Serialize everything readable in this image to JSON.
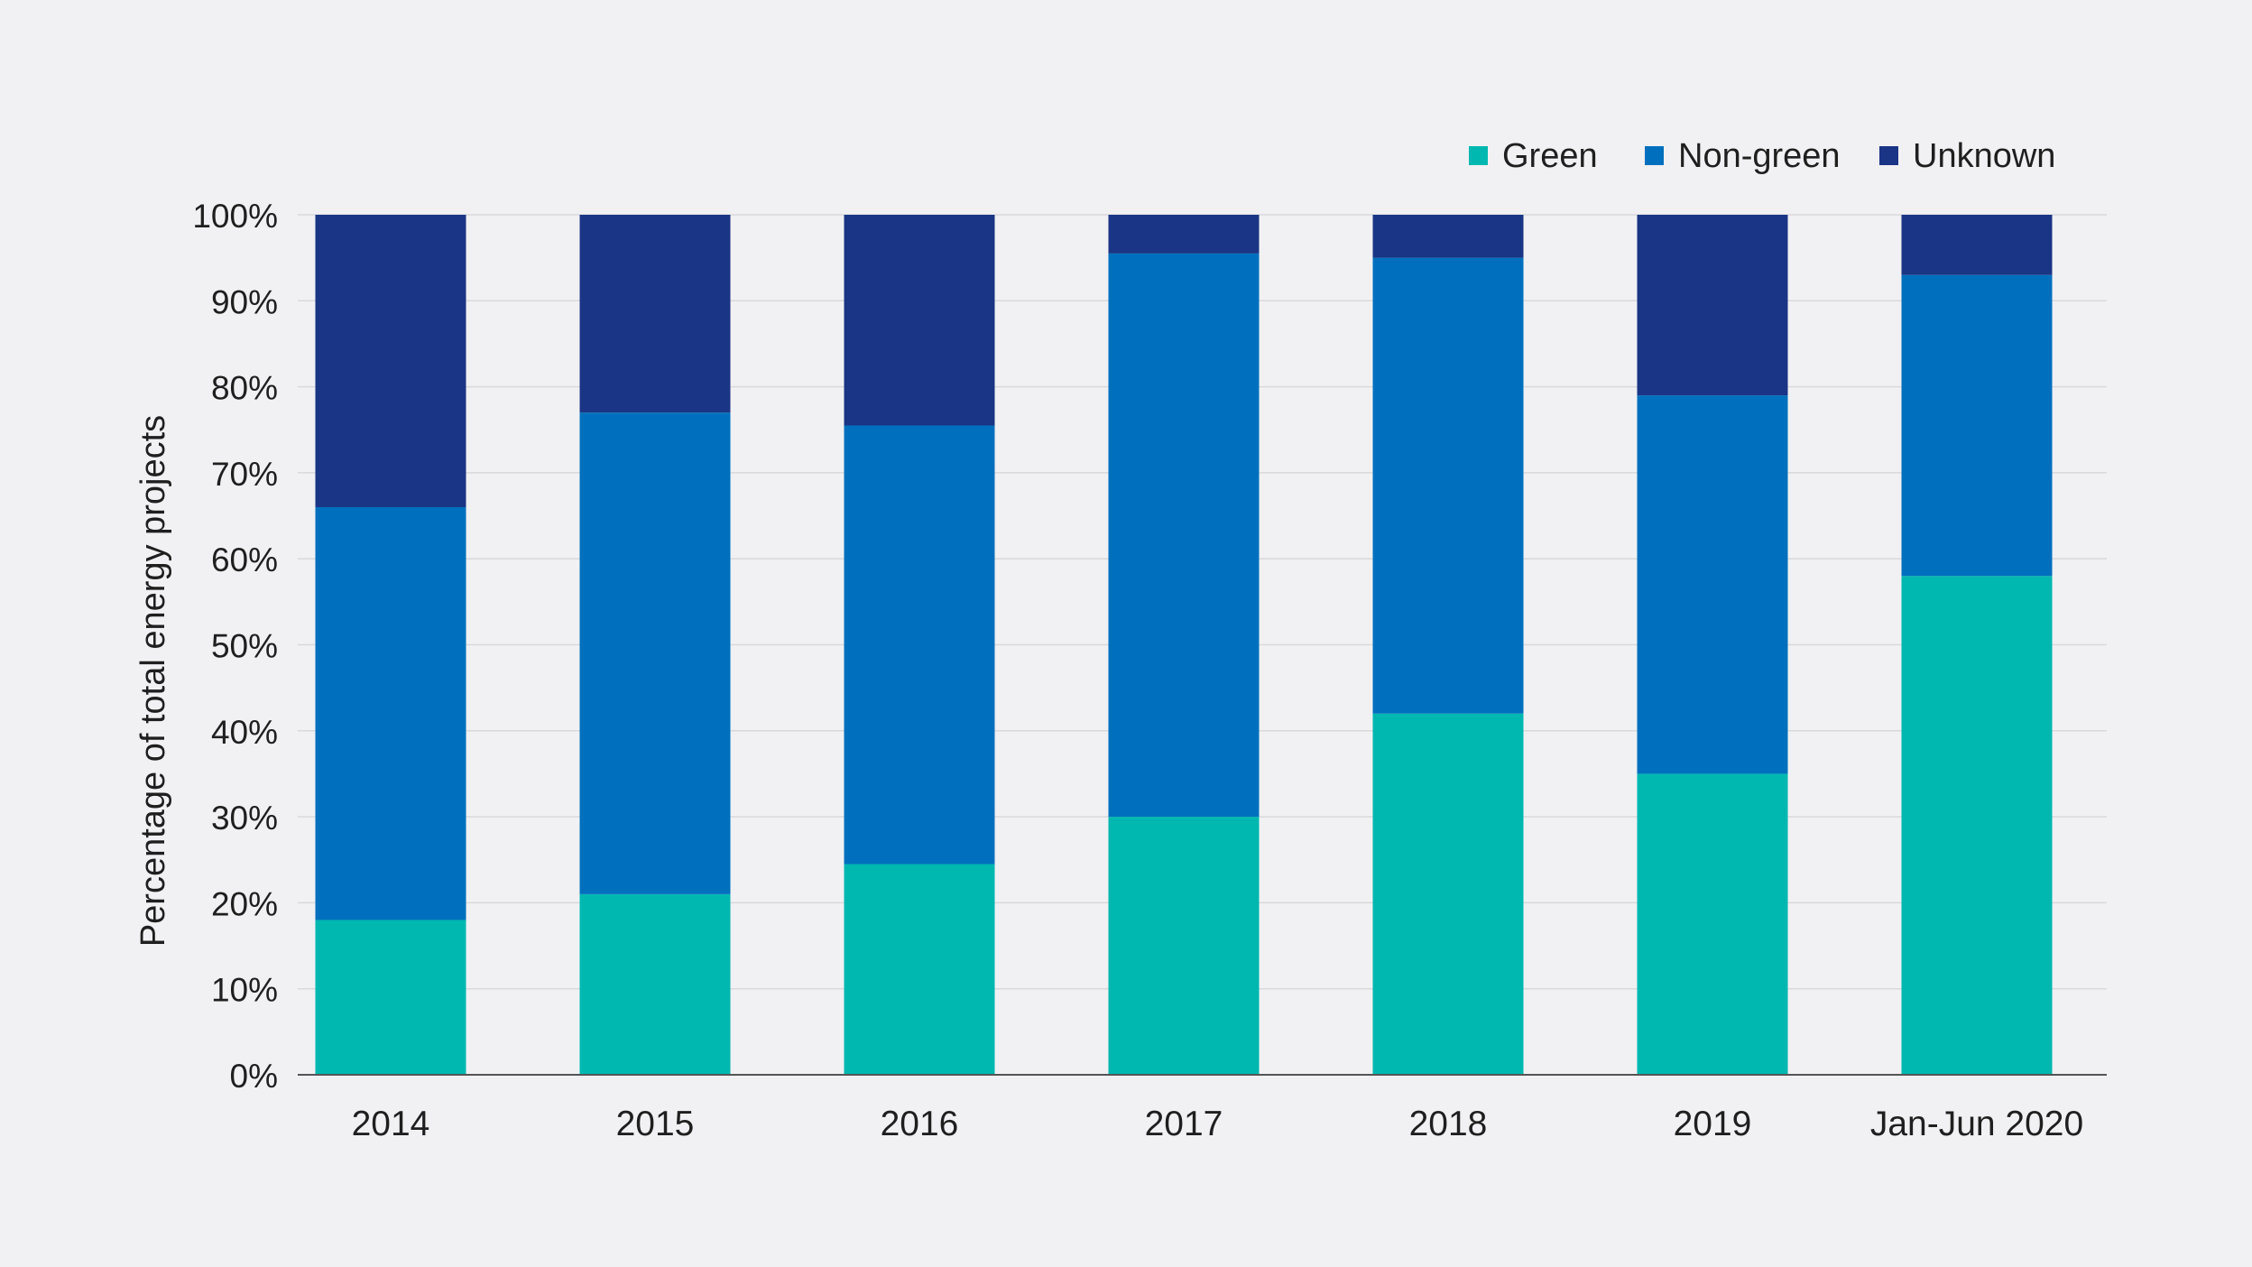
{
  "chart_data": {
    "type": "bar",
    "stacked": true,
    "title": "",
    "xlabel": "",
    "ylabel": "Percentage of total energy projects",
    "ylim": [
      0,
      100
    ],
    "y_tick_labels": [
      "0%",
      "10%",
      "20%",
      "30%",
      "40%",
      "50%",
      "60%",
      "70%",
      "80%",
      "90%",
      "100%"
    ],
    "grid": true,
    "legend_position": "top-right",
    "categories": [
      "2014",
      "2015",
      "2016",
      "2017",
      "2018",
      "2019",
      "Jan-Jun 2020"
    ],
    "series": [
      {
        "name": "Green",
        "color": "#00b8b0",
        "values": [
          18,
          21,
          24.5,
          30,
          42,
          35,
          58
        ]
      },
      {
        "name": "Non-green",
        "color": "#0070be",
        "values": [
          48,
          56,
          51,
          65.5,
          53,
          44,
          35
        ]
      },
      {
        "name": "Unknown",
        "color": "#1a3585",
        "values": [
          34,
          23,
          24.5,
          4.5,
          5,
          21,
          7
        ]
      }
    ]
  }
}
